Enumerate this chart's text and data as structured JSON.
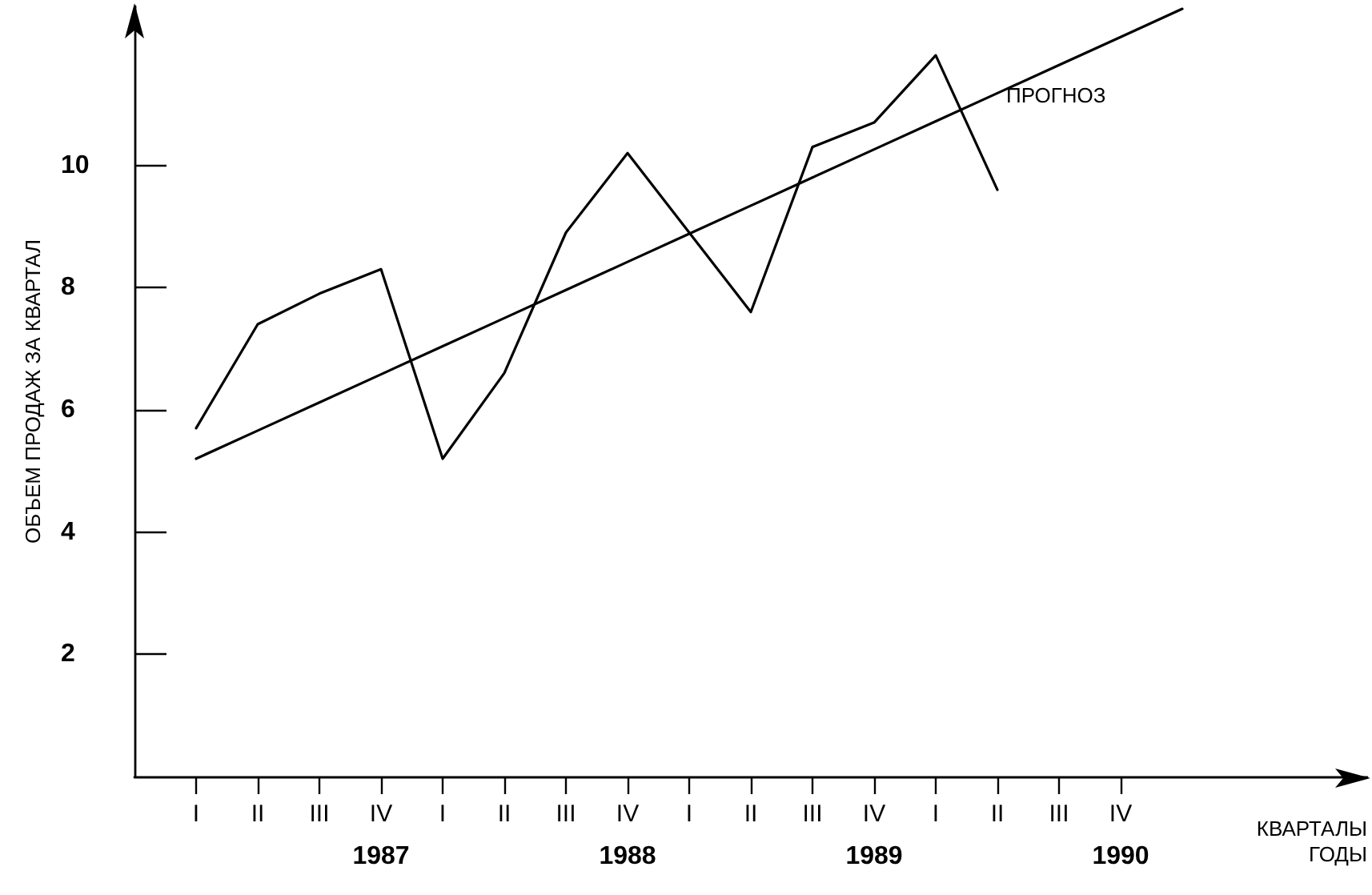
{
  "chart_data": {
    "type": "line",
    "xlabel": "КВАРТАЛЫ",
    "x2label": "ГОДЫ",
    "ylabel": "ОБЪЕМ ПРОДАЖ ЗА КВАРТАЛ",
    "categories": [
      null,
      "I",
      "II",
      "III",
      "IV",
      "I",
      "II",
      "III",
      "IV",
      "I",
      "II",
      "III",
      "IV",
      "I",
      "II",
      "III",
      "IV",
      null,
      null,
      null,
      null
    ],
    "series": [
      {
        "color": "#000000",
        "values": [
          null,
          5.7,
          7.4,
          7.9,
          8.3,
          5.2,
          6.6,
          8.9,
          10.2,
          8.9,
          7.6,
          10.3,
          10.7,
          11.8,
          9.6,
          null,
          null,
          null,
          null,
          null,
          null
        ]
      },
      {
        "name": "ПРОГНОЗ",
        "color": "#000000",
        "values": [
          null,
          5.2,
          5.66,
          6.12,
          6.58,
          7.04,
          7.5,
          7.96,
          8.42,
          8.88,
          9.34,
          9.8,
          10.26,
          10.72,
          11.18,
          11.64,
          12.1,
          12.56,
          null,
          null,
          null
        ]
      }
    ],
    "ylim": [
      0,
      12.6
    ],
    "x2lim": [
      1986,
      1991
    ],
    "x2ticks": [
      1987,
      1988,
      1989,
      1990
    ],
    "yticks": [
      2,
      4,
      6,
      8,
      10
    ],
    "grid": false,
    "legend": false,
    "marker": "none",
    "line_style": "solid"
  }
}
